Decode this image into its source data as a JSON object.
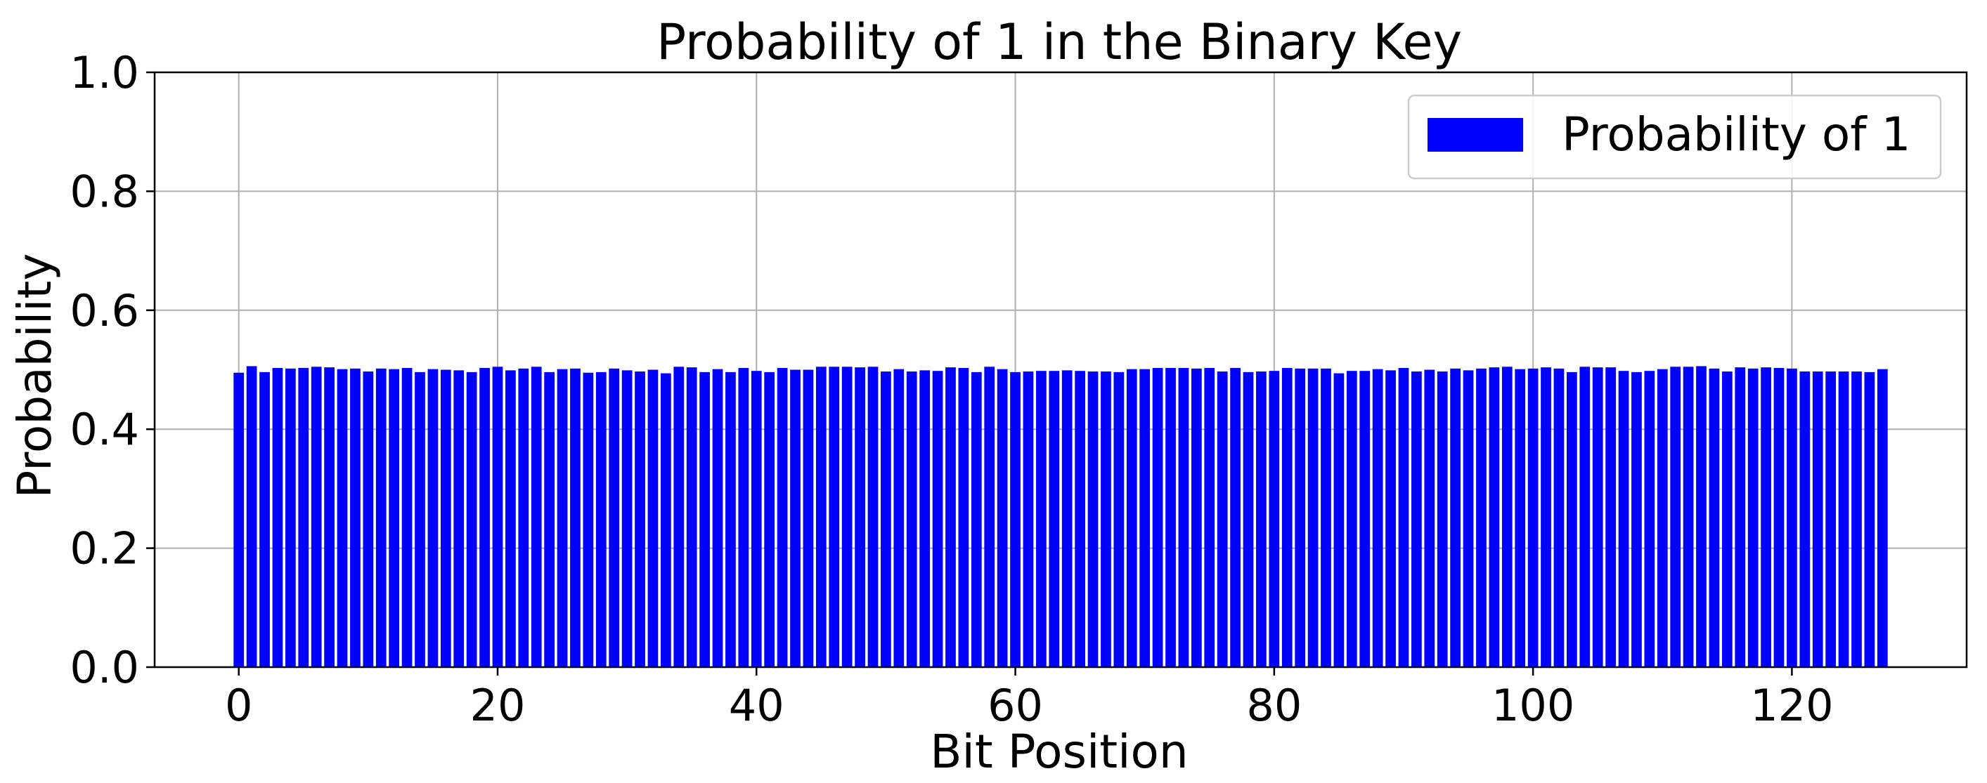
{
  "chart_data": {
    "type": "bar",
    "title": "Probability of 1 in the Binary Key",
    "xlabel": "Bit Position",
    "ylabel": "Probability",
    "xlim": [
      -6.5,
      133.5
    ],
    "ylim": [
      0.0,
      1.0
    ],
    "xticks": [
      0,
      20,
      40,
      60,
      80,
      100,
      120
    ],
    "xtick_labels": [
      "0",
      "20",
      "40",
      "60",
      "80",
      "100",
      "120"
    ],
    "yticks": [
      0.0,
      0.2,
      0.4,
      0.6,
      0.8,
      1.0
    ],
    "ytick_labels": [
      "0.0",
      "0.2",
      "0.4",
      "0.6",
      "0.8",
      "1.0"
    ],
    "grid": true,
    "legend_position": "top-right",
    "bar_color": "#0000ff",
    "series": [
      {
        "name": "Probability of 1",
        "color": "#0000ff",
        "values": [
          0.495,
          0.506,
          0.496,
          0.503,
          0.502,
          0.503,
          0.505,
          0.504,
          0.501,
          0.502,
          0.497,
          0.502,
          0.501,
          0.503,
          0.496,
          0.501,
          0.5,
          0.499,
          0.496,
          0.503,
          0.505,
          0.499,
          0.502,
          0.505,
          0.496,
          0.501,
          0.502,
          0.495,
          0.496,
          0.502,
          0.499,
          0.497,
          0.5,
          0.494,
          0.505,
          0.504,
          0.496,
          0.501,
          0.496,
          0.503,
          0.498,
          0.496,
          0.503,
          0.5,
          0.5,
          0.505,
          0.505,
          0.505,
          0.504,
          0.505,
          0.497,
          0.501,
          0.497,
          0.499,
          0.498,
          0.504,
          0.503,
          0.496,
          0.505,
          0.501,
          0.496,
          0.497,
          0.498,
          0.498,
          0.499,
          0.498,
          0.497,
          0.497,
          0.496,
          0.501,
          0.501,
          0.503,
          0.503,
          0.503,
          0.502,
          0.503,
          0.497,
          0.503,
          0.496,
          0.497,
          0.498,
          0.503,
          0.502,
          0.502,
          0.502,
          0.494,
          0.498,
          0.498,
          0.501,
          0.499,
          0.503,
          0.497,
          0.5,
          0.497,
          0.502,
          0.499,
          0.502,
          0.504,
          0.505,
          0.501,
          0.502,
          0.504,
          0.502,
          0.496,
          0.505,
          0.504,
          0.504,
          0.498,
          0.496,
          0.498,
          0.501,
          0.505,
          0.505,
          0.506,
          0.502,
          0.497,
          0.504,
          0.502,
          0.504,
          0.503,
          0.502,
          0.497,
          0.497,
          0.497,
          0.497,
          0.497,
          0.496,
          0.501
        ]
      }
    ]
  }
}
